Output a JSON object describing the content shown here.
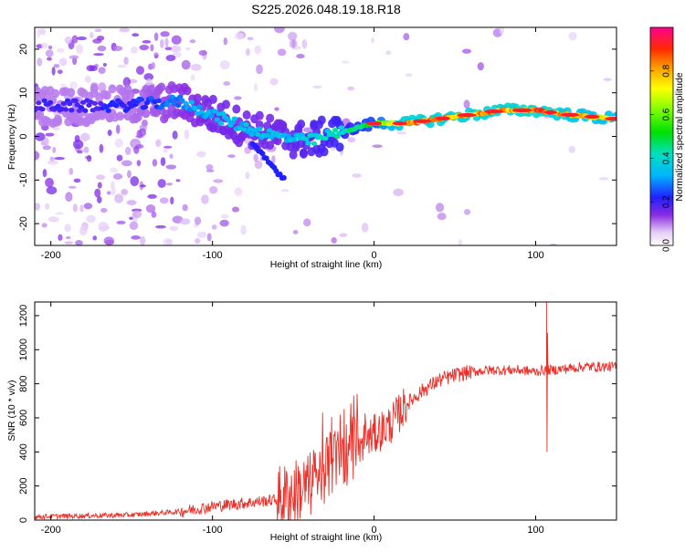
{
  "title": "S225.2026.048.19.18.R18",
  "chart_data": [
    {
      "type": "heatmap",
      "name": "spectrogram",
      "xlabel": "Height of straight line (km)",
      "ylabel": "Frequency (Hz)",
      "xlim": [
        -210,
        150
      ],
      "ylim": [
        -25,
        25
      ],
      "xticks": [
        -200,
        -100,
        0,
        100
      ],
      "yticks": [
        -20,
        -10,
        0,
        10,
        20
      ],
      "colorbar": {
        "label": "Normalized spectral amplitude",
        "range": [
          0,
          1
        ],
        "ticks": [
          0.0,
          0.2,
          0.4,
          0.6,
          0.8
        ]
      },
      "ridge": {
        "description": "dominant frequency ridge",
        "x": [
          -200,
          -180,
          -160,
          -140,
          -120,
          -100,
          -80,
          -60,
          -40,
          -20,
          0,
          20,
          40,
          60,
          80,
          100,
          120,
          150
        ],
        "y": [
          7,
          7,
          7,
          7.5,
          8,
          5,
          2,
          0,
          -1,
          1,
          3,
          3,
          4,
          5,
          6,
          6,
          5,
          4
        ],
        "amplitude": [
          0.2,
          0.2,
          0.22,
          0.25,
          0.3,
          0.35,
          0.35,
          0.35,
          0.4,
          0.45,
          0.55,
          0.85,
          0.85,
          0.85,
          0.85,
          0.9,
          0.8,
          0.75
        ]
      }
    },
    {
      "type": "line",
      "name": "snr",
      "xlabel": "Height of straight line (km)",
      "ylabel": "SNR (10 * v/v)",
      "xlim": [
        -210,
        150
      ],
      "ylim": [
        0,
        1280
      ],
      "xticks": [
        -200,
        -100,
        0,
        100
      ],
      "yticks": [
        0,
        200,
        400,
        600,
        800,
        1000,
        1200
      ],
      "color": "#e8312a",
      "series": [
        {
          "name": "SNR",
          "x": [
            -210,
            -180,
            -150,
            -120,
            -100,
            -80,
            -60,
            -40,
            -30,
            -20,
            -10,
            0,
            10,
            20,
            30,
            40,
            50,
            60,
            70,
            80,
            90,
            100,
            105,
            107,
            110,
            120,
            130,
            140,
            150
          ],
          "y": [
            20,
            25,
            30,
            50,
            80,
            100,
            120,
            200,
            300,
            380,
            440,
            500,
            560,
            680,
            760,
            820,
            850,
            870,
            880,
            880,
            880,
            870,
            880,
            880,
            880,
            890,
            900,
            900,
            900
          ]
        }
      ],
      "annotations": [
        {
          "x": 107,
          "max": 1280,
          "min": 400,
          "text": ""
        }
      ]
    }
  ]
}
